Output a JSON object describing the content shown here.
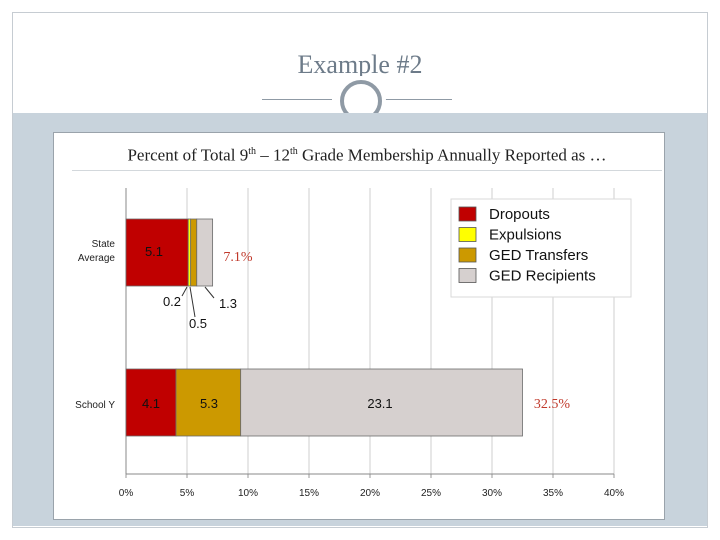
{
  "slide": {
    "title": "Example #2",
    "header": {
      "prefix": "Percent of Total 9",
      "sup1": "th",
      "middle": " – 12",
      "sup2": "th",
      "suffix": " Grade Membership Annually Reported as …"
    }
  },
  "chart_data": {
    "type": "bar",
    "orientation": "horizontal",
    "stacked": true,
    "categories": [
      "State Average",
      "School Y"
    ],
    "x_ticks": [
      "0%",
      "5%",
      "10%",
      "15%",
      "20%",
      "25%",
      "30%",
      "35%",
      "40%"
    ],
    "xlim": [
      0,
      40
    ],
    "grid": true,
    "legend_position": "top-right",
    "series": [
      {
        "name": "Dropouts",
        "color": "#c00000",
        "values": [
          5.1,
          4.1
        ]
      },
      {
        "name": "Expulsions",
        "color": "#ffff00",
        "values": [
          0.2,
          0
        ]
      },
      {
        "name": "GED Transfers",
        "color": "#cc9900",
        "values": [
          0.5,
          5.3
        ]
      },
      {
        "name": "GED Recipients",
        "color": "#d6d0cf",
        "values": [
          1.3,
          23.1
        ]
      }
    ],
    "data_labels": [
      {
        "category": "State Average",
        "series": "Dropouts",
        "text": "5.1"
      },
      {
        "category": "State Average",
        "series": "Expulsions",
        "text": "0.2"
      },
      {
        "category": "State Average",
        "series": "GED Transfers",
        "text": "0.5"
      },
      {
        "category": "State Average",
        "series": "GED Recipients",
        "text": "1.3"
      },
      {
        "category": "School Y",
        "series": "Dropouts",
        "text": "4.1"
      },
      {
        "category": "School Y",
        "series": "GED Transfers",
        "text": "5.3"
      },
      {
        "category": "School Y",
        "series": "GED Recipients",
        "text": "23.1"
      }
    ],
    "totals": [
      {
        "category": "State Average",
        "text": "7.1%",
        "color": "#c0392b"
      },
      {
        "category": "School Y",
        "text": "32.5%",
        "color": "#c0392b"
      }
    ]
  }
}
